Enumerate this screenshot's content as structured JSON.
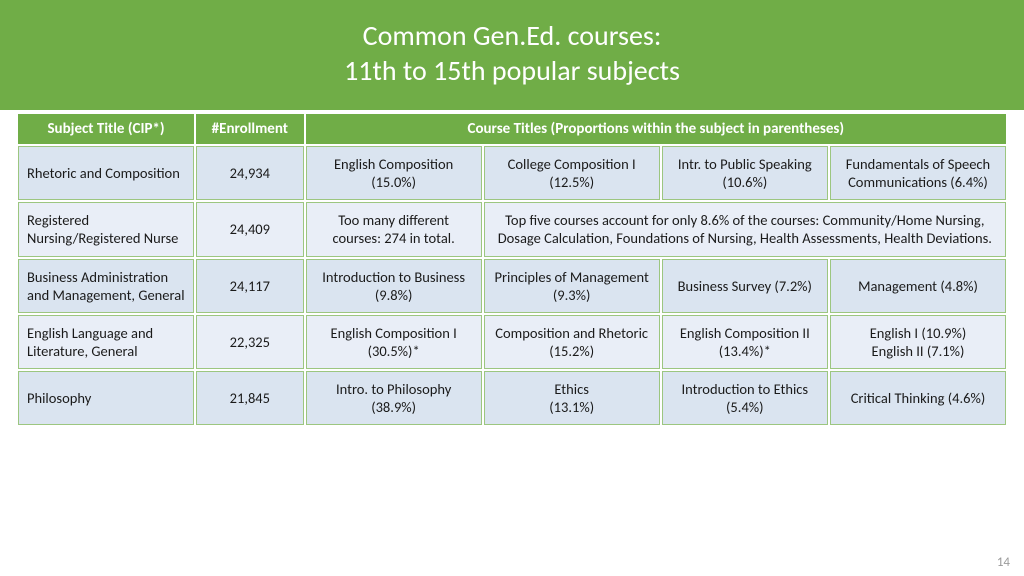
{
  "colors": {
    "header_green": "#70ad47",
    "light_blue": "#dae4f0",
    "lighter_blue": "#e9eef7",
    "border_green": "#9cc680",
    "text": "#1a1a1a",
    "white": "#ffffff"
  },
  "layout": {
    "col_widths_pct": [
      18,
      11,
      18,
      18,
      17,
      18
    ]
  },
  "title": {
    "line1": "Common Gen.Ed. courses:",
    "line2": "11th to 15th  popular subjects"
  },
  "headers": {
    "subject": "Subject Title (CIP*)",
    "enrollment": "#Enrollment",
    "courses": "Course Titles  (Proportions within the subject in parentheses)"
  },
  "rows": [
    {
      "subject": "Rhetoric and Composition",
      "enrollment": "24,934",
      "c1": "English Composition (15.0%)",
      "c2": "College Composition I\n(12.5%)",
      "c3": "Intr. to Public Speaking (10.6%)",
      "c4": "Fundamentals of Speech Communications (6.4%)"
    },
    {
      "subject": "Registered Nursing/Registered Nurse",
      "enrollment": "24,409",
      "c1": "Too many different courses: 274 in total.",
      "merged": "Top five courses account for only 8.6% of the courses: Community/Home Nursing, Dosage Calculation, Foundations of Nursing, Health Assessments, Health Deviations."
    },
    {
      "subject": "Business Administration and Management, General",
      "enrollment": "24,117",
      "c1": "Introduction to Business (9.8%)",
      "c2": "Principles of Management (9.3%)",
      "c3": "Business Survey (7.2%)",
      "c4": "Management (4.8%)"
    },
    {
      "subject": "English Language and Literature, General",
      "enrollment": "22,325",
      "c1": "English Composition I (30.5%)*",
      "c2": "Composition and Rhetoric (15.2%)",
      "c3": "English Composition II (13.4%)*",
      "c4": "English I (10.9%)\nEnglish II (7.1%)"
    },
    {
      "subject": "Philosophy",
      "enrollment": "21,845",
      "c1": "Intro. to Philosophy (38.9%)",
      "c2": "Ethics\n(13.1%)",
      "c3": "Introduction to Ethics (5.4%)",
      "c4": "Critical Thinking (4.6%)"
    }
  ],
  "slide_number": "14"
}
